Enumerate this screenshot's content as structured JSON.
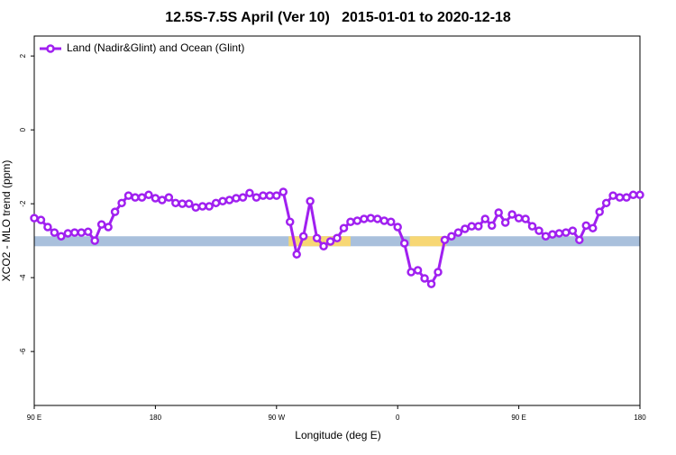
{
  "chart_data": {
    "type": "line",
    "title": "12.5S-7.5S April (Ver 10)   2015-01-01 to 2020-12-18",
    "x_label": "Longitude (deg E)",
    "y_label": "XCO2 - MLO trend (ppm)",
    "x": [
      90,
      95,
      100,
      105,
      110,
      115,
      120,
      125,
      130,
      135,
      140,
      145,
      150,
      155,
      160,
      165,
      170,
      175,
      180,
      185,
      190,
      195,
      200,
      205,
      210,
      215,
      220,
      225,
      230,
      235,
      240,
      245,
      250,
      255,
      260,
      265,
      270,
      275,
      280,
      285,
      290,
      295,
      300,
      305,
      310,
      315,
      320,
      325,
      330,
      335,
      340,
      345,
      350,
      355,
      360,
      365,
      370,
      375,
      380,
      385,
      390,
      395,
      400,
      405,
      410,
      415,
      420,
      425,
      430,
      435,
      440,
      445,
      450,
      455,
      460,
      465,
      470,
      475,
      480,
      485,
      490,
      495,
      500,
      505,
      510,
      515,
      520,
      525,
      530,
      535,
      540
    ],
    "series": [
      {
        "name": "Land (Nadir&Glint) and Ocean (Glint)",
        "color": "#a020f0",
        "values": [
          -2.39,
          -2.44,
          -2.63,
          -2.78,
          -2.88,
          -2.8,
          -2.78,
          -2.78,
          -2.76,
          -3.0,
          -2.56,
          -2.63,
          -2.22,
          -1.98,
          -1.78,
          -1.83,
          -1.83,
          -1.76,
          -1.85,
          -1.9,
          -1.83,
          -1.98,
          -2.0,
          -2.0,
          -2.1,
          -2.07,
          -2.07,
          -1.98,
          -1.93,
          -1.9,
          -1.85,
          -1.83,
          -1.71,
          -1.83,
          -1.78,
          -1.78,
          -1.78,
          -1.68,
          -2.49,
          -3.37,
          -2.88,
          -1.93,
          -2.93,
          -3.15,
          -3.02,
          -2.93,
          -2.66,
          -2.49,
          -2.46,
          -2.41,
          -2.39,
          -2.41,
          -2.46,
          -2.49,
          -2.63,
          -3.07,
          -3.85,
          -3.8,
          -4.02,
          -4.17,
          -3.85,
          -2.98,
          -2.88,
          -2.78,
          -2.68,
          -2.61,
          -2.61,
          -2.41,
          -2.59,
          -2.24,
          -2.51,
          -2.29,
          -2.39,
          -2.41,
          -2.61,
          -2.73,
          -2.88,
          -2.83,
          -2.8,
          -2.78,
          -2.73,
          -2.98,
          -2.59,
          -2.66,
          -2.22,
          -1.98,
          -1.78,
          -1.83,
          -1.83,
          -1.76,
          -1.76
        ]
      }
    ],
    "xlim": [
      90,
      540
    ],
    "ylim": [
      -7.46,
      2.54
    ],
    "xticks": [
      {
        "value": 90,
        "label": "90 E"
      },
      180,
      {
        "value": 270,
        "label": "90 W"
      },
      {
        "value": 360,
        "label": "0"
      },
      {
        "value": 450,
        "label": "90 E"
      },
      {
        "value": 540,
        "label": "180"
      }
    ],
    "yticks": [
      2,
      0,
      -2,
      -4,
      -6
    ],
    "band": {
      "ylim": [
        -3.15,
        -2.88
      ],
      "color": "#a9c0dc",
      "highlight_color": "#f7d774",
      "highlights": [
        [
          279,
          325
        ],
        [
          369,
          396
        ]
      ]
    },
    "legend": "top-left"
  }
}
